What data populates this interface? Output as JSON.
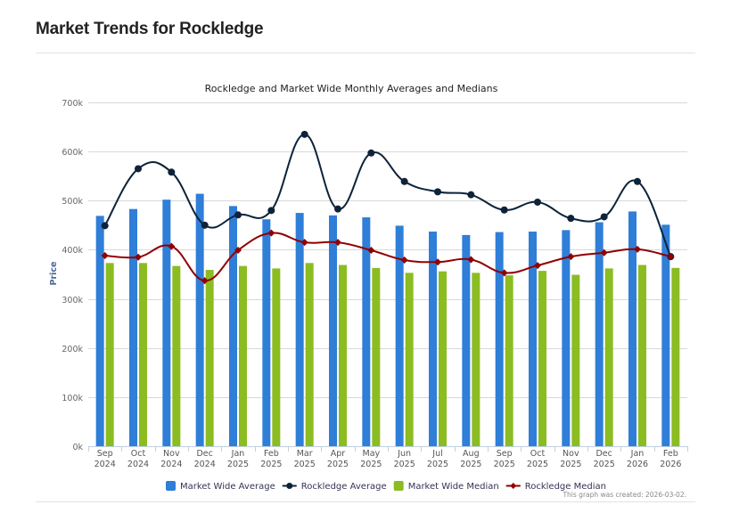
{
  "page": {
    "title": "Market Trends for Rockledge"
  },
  "chart_data": {
    "type": "bar",
    "title": "Rockledge and Market Wide Monthly Averages and Medians",
    "xlabel": "",
    "ylabel": "Price",
    "ylim": [
      0,
      700000
    ],
    "yticks": [
      0,
      100000,
      200000,
      300000,
      400000,
      500000,
      600000,
      700000
    ],
    "ytick_labels": [
      "0k",
      "100k",
      "200k",
      "300k",
      "400k",
      "500k",
      "600k",
      "700k"
    ],
    "grid": true,
    "legend_position": "bottom-center",
    "categories": [
      [
        "Sep",
        "2024"
      ],
      [
        "Oct",
        "2024"
      ],
      [
        "Nov",
        "2024"
      ],
      [
        "Dec",
        "2024"
      ],
      [
        "Jan",
        "2025"
      ],
      [
        "Feb",
        "2025"
      ],
      [
        "Mar",
        "2025"
      ],
      [
        "Apr",
        "2025"
      ],
      [
        "May",
        "2025"
      ],
      [
        "Jun",
        "2025"
      ],
      [
        "Jul",
        "2025"
      ],
      [
        "Aug",
        "2025"
      ],
      [
        "Sep",
        "2025"
      ],
      [
        "Oct",
        "2025"
      ],
      [
        "Nov",
        "2025"
      ],
      [
        "Dec",
        "2025"
      ],
      [
        "Jan",
        "2026"
      ],
      [
        "Feb",
        "2026"
      ]
    ],
    "series": [
      {
        "name": "Market Wide Average",
        "kind": "bar",
        "color": "#2f7ed8",
        "values": [
          469000,
          483000,
          502000,
          514000,
          489000,
          462000,
          475000,
          470000,
          466000,
          449000,
          437000,
          430000,
          436000,
          437000,
          440000,
          456000,
          478000,
          451000
        ]
      },
      {
        "name": "Rockledge Average",
        "kind": "spline",
        "color": "#0d233a",
        "marker": "circle",
        "values": [
          449000,
          565000,
          558000,
          450000,
          471000,
          480000,
          635000,
          483000,
          597000,
          539000,
          518000,
          512000,
          481000,
          497000,
          464000,
          467000,
          539000,
          386000
        ]
      },
      {
        "name": "Market Wide Median",
        "kind": "bar",
        "color": "#8bbc21",
        "values": [
          373000,
          373000,
          367000,
          359000,
          367000,
          362000,
          373000,
          369000,
          363000,
          353000,
          356000,
          353000,
          348000,
          357000,
          349000,
          362000,
          369000,
          363000
        ]
      },
      {
        "name": "Rockledge Median",
        "kind": "spline",
        "color": "#910000",
        "marker": "diamond",
        "values": [
          388000,
          385000,
          407000,
          337000,
          399000,
          434000,
          415000,
          415000,
          399000,
          379000,
          375000,
          380000,
          353000,
          368000,
          386000,
          394000,
          401000,
          386000
        ]
      }
    ],
    "credit": "This graph was created: 2026-03-02."
  }
}
